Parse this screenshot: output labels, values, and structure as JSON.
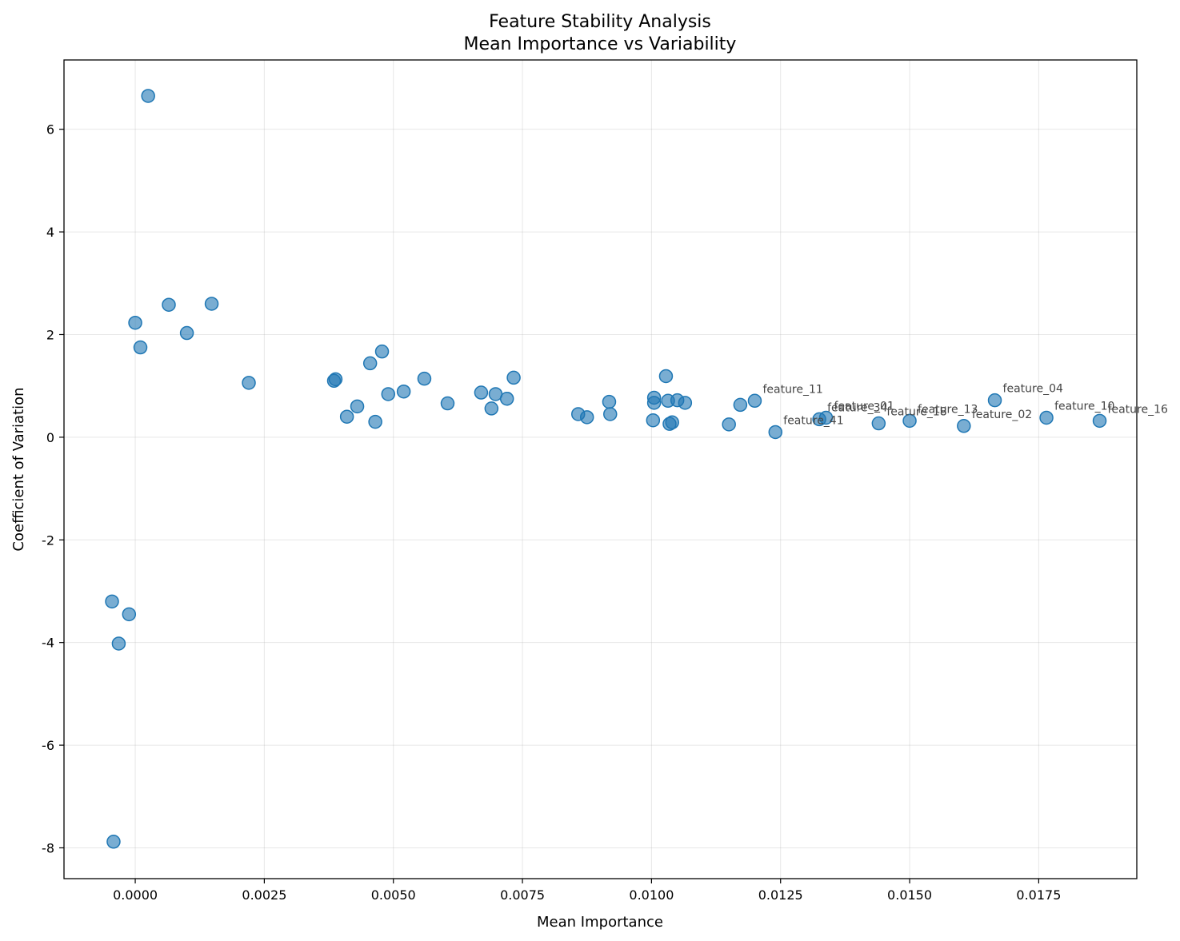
{
  "chart_data": {
    "type": "scatter",
    "title": [
      "Feature Stability Analysis",
      "Mean Importance vs Variability"
    ],
    "xlabel": "Mean Importance",
    "ylabel": "Coefficient of Variation",
    "xlim": [
      -0.00138,
      0.0194
    ],
    "ylim": [
      -8.6,
      7.35
    ],
    "xticks": [
      0.0,
      0.0025,
      0.005,
      0.0075,
      0.01,
      0.0125,
      0.015,
      0.0175
    ],
    "xtick_labels": [
      "0.0000",
      "0.0025",
      "0.0050",
      "0.0075",
      "0.0100",
      "0.0125",
      "0.0150",
      "0.0175"
    ],
    "yticks": [
      -8,
      -6,
      -4,
      -2,
      0,
      2,
      4,
      6
    ],
    "ytick_labels": [
      "-8",
      "-6",
      "-4",
      "-2",
      "0",
      "2",
      "4",
      "6"
    ],
    "grid": true,
    "color": "#1f77b4",
    "points": [
      {
        "x": 0.00025,
        "y": 6.65
      },
      {
        "x": 0.00065,
        "y": 2.58
      },
      {
        "x": 0.00148,
        "y": 2.6
      },
      {
        "x": 0.0,
        "y": 2.23
      },
      {
        "x": 0.0001,
        "y": 1.75
      },
      {
        "x": 0.001,
        "y": 2.03
      },
      {
        "x": 0.0022,
        "y": 1.06
      },
      {
        "x": 0.00388,
        "y": 1.13
      },
      {
        "x": 0.00385,
        "y": 1.1
      },
      {
        "x": 0.0041,
        "y": 0.4
      },
      {
        "x": 0.0043,
        "y": 0.6
      },
      {
        "x": 0.00455,
        "y": 1.44
      },
      {
        "x": 0.00465,
        "y": 0.3
      },
      {
        "x": 0.00478,
        "y": 1.67
      },
      {
        "x": 0.0049,
        "y": 0.84
      },
      {
        "x": 0.0052,
        "y": 0.89
      },
      {
        "x": 0.0056,
        "y": 1.14
      },
      {
        "x": 0.00605,
        "y": 0.66
      },
      {
        "x": 0.0067,
        "y": 0.87
      },
      {
        "x": 0.0069,
        "y": 0.56
      },
      {
        "x": 0.00698,
        "y": 0.84
      },
      {
        "x": 0.0072,
        "y": 0.75
      },
      {
        "x": 0.00733,
        "y": 1.16
      },
      {
        "x": 0.00858,
        "y": 0.45
      },
      {
        "x": 0.00875,
        "y": 0.39
      },
      {
        "x": 0.00918,
        "y": 0.69
      },
      {
        "x": 0.0092,
        "y": 0.45
      },
      {
        "x": 0.01003,
        "y": 0.33
      },
      {
        "x": 0.01005,
        "y": 0.77
      },
      {
        "x": 0.01005,
        "y": 0.67
      },
      {
        "x": 0.01028,
        "y": 1.19
      },
      {
        "x": 0.01032,
        "y": 0.71
      },
      {
        "x": 0.01035,
        "y": 0.26
      },
      {
        "x": 0.0104,
        "y": 0.29
      },
      {
        "x": 0.0105,
        "y": 0.72
      },
      {
        "x": 0.01065,
        "y": 0.67
      },
      {
        "x": 0.0115,
        "y": 0.25
      },
      {
        "x": 0.01172,
        "y": 0.63
      },
      {
        "x": 0.012,
        "y": 0.71,
        "label": "feature_11"
      },
      {
        "x": 0.0124,
        "y": 0.1,
        "label": "feature_41"
      },
      {
        "x": 0.01325,
        "y": 0.35,
        "label": "feature_34"
      },
      {
        "x": 0.01338,
        "y": 0.38,
        "label": "feature_01"
      },
      {
        "x": 0.0144,
        "y": 0.27,
        "label": "feature_18"
      },
      {
        "x": 0.015,
        "y": 0.32,
        "label": "feature_13"
      },
      {
        "x": 0.01605,
        "y": 0.22,
        "label": "feature_02"
      },
      {
        "x": 0.01665,
        "y": 0.72,
        "label": "feature_04"
      },
      {
        "x": 0.01765,
        "y": 0.38,
        "label": "feature_10"
      },
      {
        "x": 0.01868,
        "y": 0.32,
        "label": "feature_16"
      },
      {
        "x": -0.00045,
        "y": -3.2
      },
      {
        "x": -0.00012,
        "y": -3.45
      },
      {
        "x": -0.00032,
        "y": -4.02
      },
      {
        "x": -0.00042,
        "y": -7.88
      }
    ]
  }
}
